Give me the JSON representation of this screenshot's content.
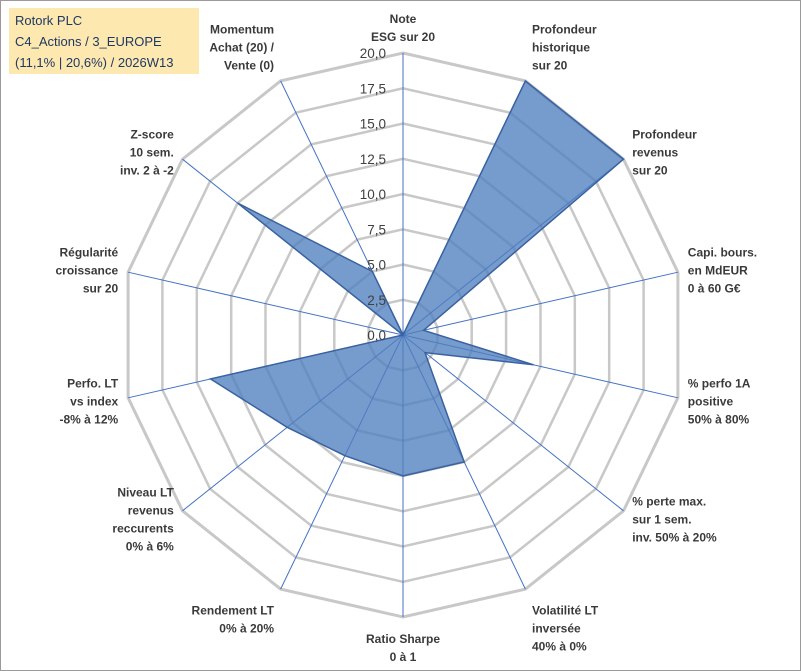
{
  "title_box": {
    "line1": "Rotork PLC",
    "line2": "C4_Actions / 3_EUROPE",
    "line3": "(11,1% | 20,6%) / 2026W13"
  },
  "colors": {
    "fill": "#4f7fbf",
    "grid": "#c8c8c8",
    "spoke": "#4472c4",
    "title_bg": "#fde9b0"
  },
  "chart_data": {
    "type": "radar",
    "rmin": 0,
    "rmax": 20,
    "tick_step": 2.5,
    "tick_labels": [
      "0,0",
      "2,5",
      "5,0",
      "7,5",
      "10,0",
      "12,5",
      "15,0",
      "17,5",
      "20,0"
    ],
    "grid": true,
    "axes": [
      {
        "label": [
          "Note",
          "ESG sur 20"
        ]
      },
      {
        "label": [
          "Profondeur",
          "historique",
          "sur 20"
        ]
      },
      {
        "label": [
          "Profondeur",
          "revenus",
          "sur 20"
        ]
      },
      {
        "label": [
          "Capi. bours.",
          "en MdEUR",
          "0 à 60 G€"
        ]
      },
      {
        "label": [
          "% perfo 1A",
          "positive",
          "50% à 80%"
        ]
      },
      {
        "label": [
          "% perte max.",
          "sur 1 sem.",
          "inv. 50% à 20%"
        ]
      },
      {
        "label": [
          "Volatilité LT",
          "inversée",
          "40% à 0%"
        ]
      },
      {
        "label": [
          "Ratio Sharpe",
          "0 à 1"
        ]
      },
      {
        "label": [
          "Rendement LT",
          "0% à 20%"
        ]
      },
      {
        "label": [
          "Niveau LT",
          "revenus",
          "reccurents",
          "0% à 6%"
        ]
      },
      {
        "label": [
          "Perfo. LT",
          "vs index",
          "-8% à 12%"
        ]
      },
      {
        "label": [
          "Régularité",
          "croissance",
          "sur 20"
        ]
      },
      {
        "label": [
          "Z-score",
          "10 sem.",
          "inv. 2 à -2"
        ]
      },
      {
        "label": [
          "Momentum",
          "Achat (20) /",
          "Vente (0)"
        ]
      }
    ],
    "series": [
      {
        "values": [
          0,
          20,
          20,
          1.5,
          9.5,
          2,
          10,
          10,
          9.5,
          10.5,
          14,
          0,
          15,
          5
        ]
      }
    ]
  }
}
